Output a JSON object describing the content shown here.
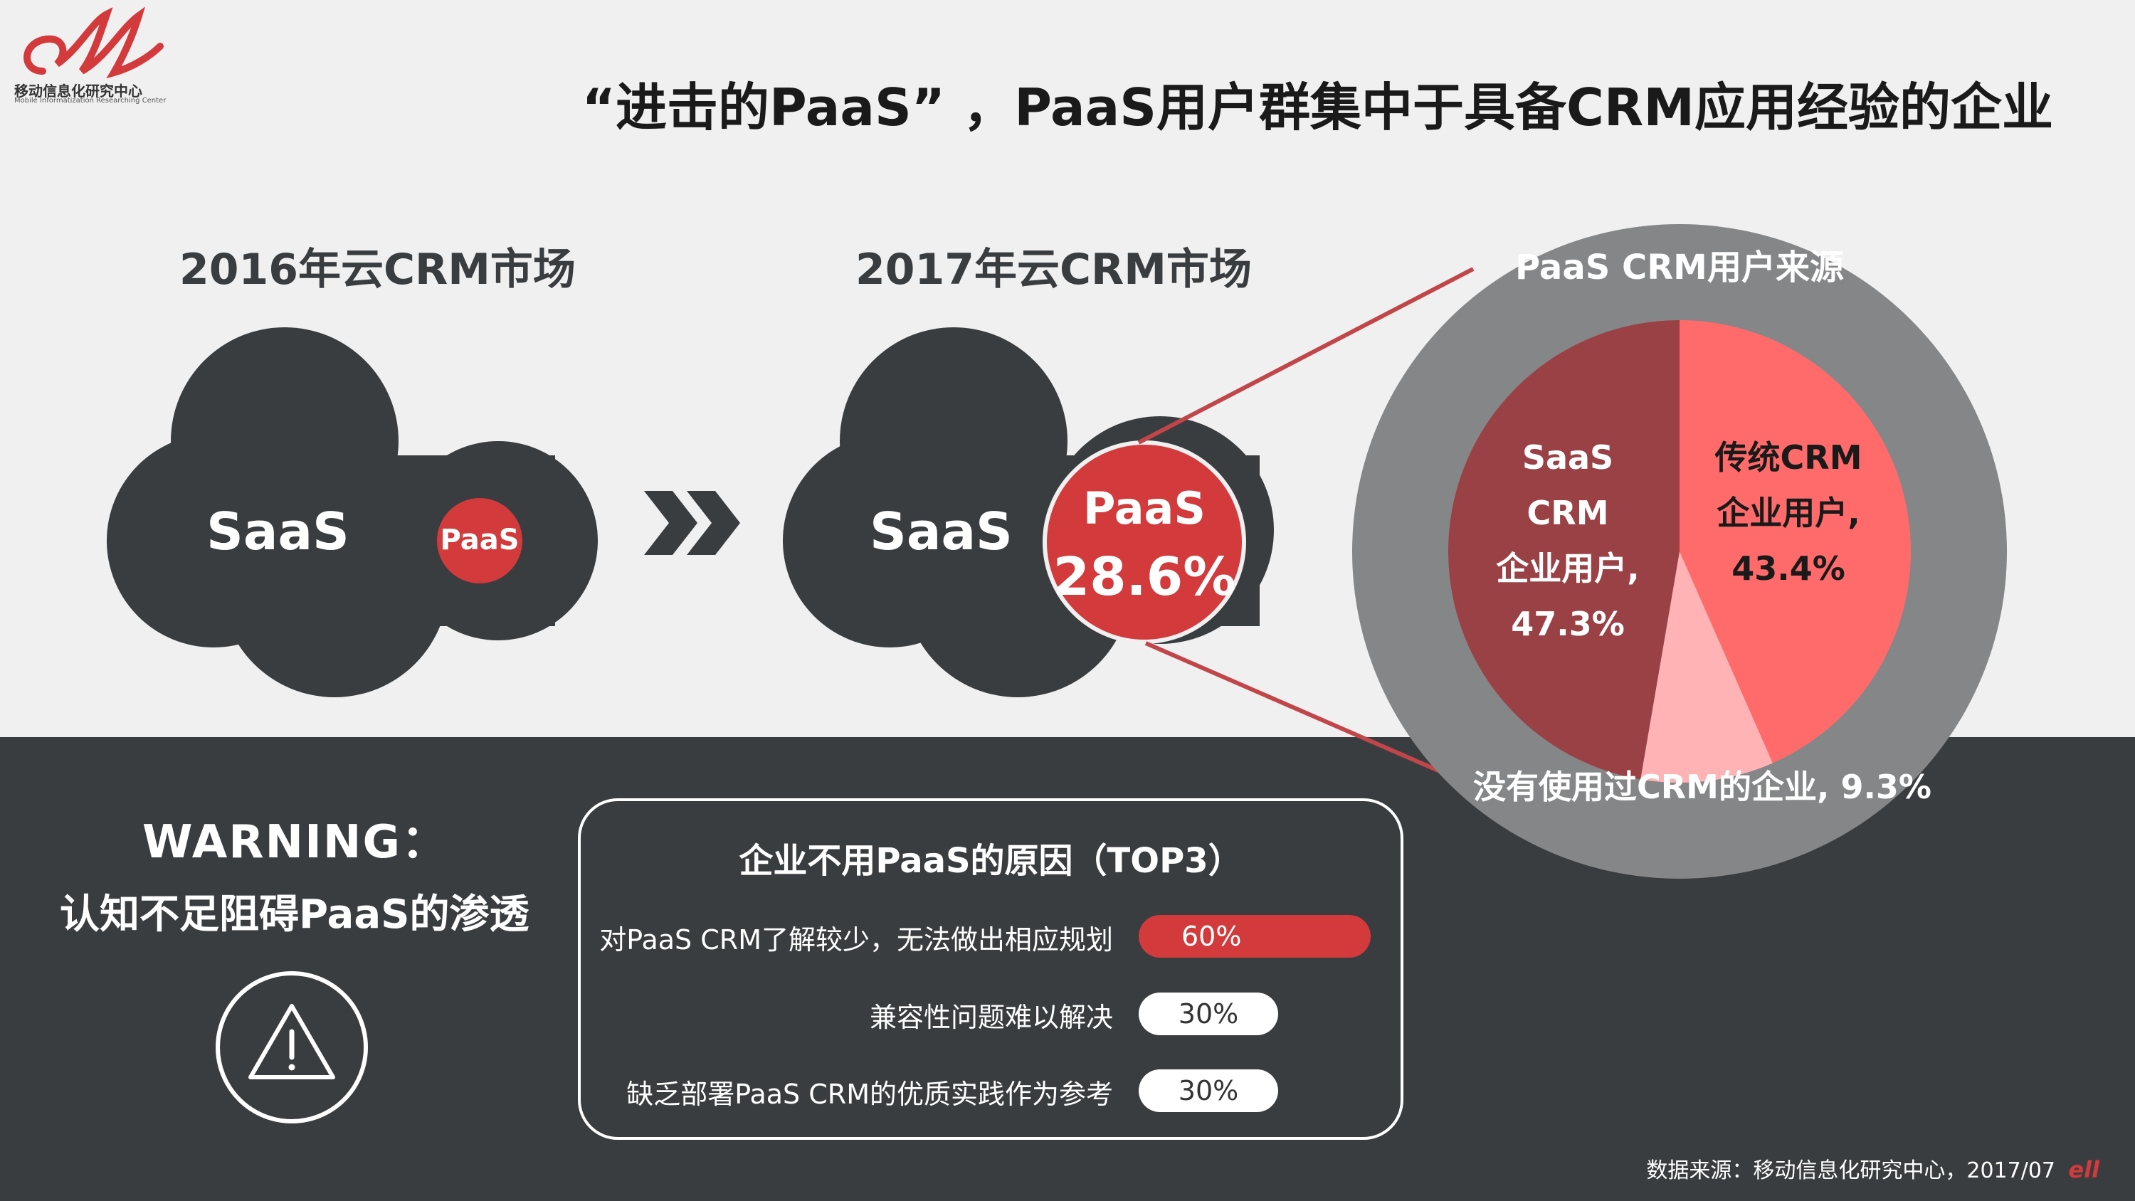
{
  "logo": {
    "name": "移动信息化研究中心",
    "subtitle": "Mobile Informatization Researching Center"
  },
  "title": "“进击的PaaS” ，PaaS用户群集中于具备CRM应用经验的企业",
  "market_2016": {
    "label": "2016年云CRM市场",
    "saas": "SaaS",
    "paas": "PaaS"
  },
  "market_2017": {
    "label": "2017年云CRM市场",
    "saas": "SaaS",
    "paas": "PaaS",
    "paas_share": "28.6%"
  },
  "colors": {
    "accent": "#d23a3c",
    "dark": "#3a3d40",
    "gray_ring": "#858687",
    "saas_slice": "#9a4146",
    "traditional_slice": "#ff6b6b",
    "none_slice": "#ffb3b5"
  },
  "chart_data": {
    "type": "pie",
    "title": "PaaS CRM用户来源",
    "slices": [
      {
        "label_line1": "传统CRM",
        "label_line2": "企业用户,",
        "value": 43.4,
        "value_label": "43.4%"
      },
      {
        "label": "没有使用过CRM的企业",
        "value": 9.3,
        "value_label": "没有使用过CRM的企业, 9.3%"
      },
      {
        "label_line1": "SaaS CRM",
        "label_line2": "企业用户,",
        "value": 47.3,
        "value_label": "47.3%"
      }
    ]
  },
  "warning": {
    "title": "WARNING：",
    "subtitle": "认知不足阻碍PaaS的渗透",
    "icon": "warning-triangle-icon"
  },
  "reasons": {
    "heading": "企业不用PaaS的原因（TOP3）",
    "items": [
      {
        "label": "对PaaS CRM了解较少，无法做出相应规划",
        "value": "60%",
        "fraction": 0.6
      },
      {
        "label": "兼容性问题难以解决",
        "value": "30%",
        "fraction": 0.3
      },
      {
        "label": "缺乏部署PaaS CRM的优质实践作为参考",
        "value": "30%",
        "fraction": 0.3
      }
    ]
  },
  "source": "数据来源：移动信息化研究中心，2017/07"
}
